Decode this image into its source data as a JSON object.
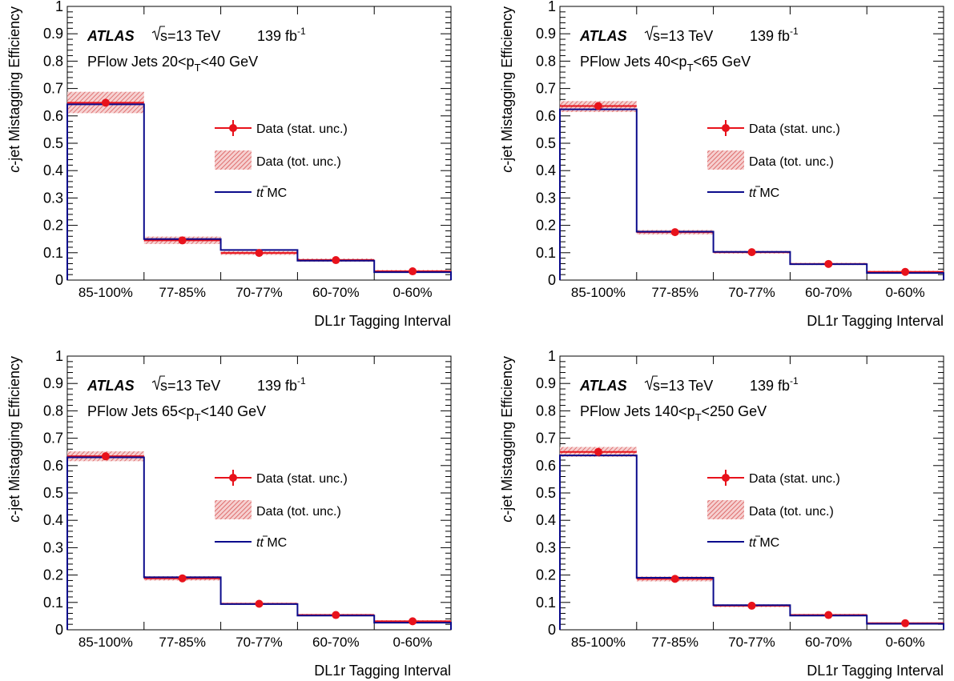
{
  "common": {
    "experiment": "ATLAS",
    "energy": "s=13 TeV",
    "luminosity": "139 fb",
    "lumi_exp": "-1",
    "ylabel_italic": "c",
    "ylabel_rest": "-jet Mistagging Efficiency",
    "xlabel": "DL1r Tagging Interval",
    "legend": {
      "stat": "Data (stat. unc.)",
      "tot": "Data  (tot. unc.)",
      "mc_italic": "tt",
      "mc_rest": " MC"
    },
    "colors": {
      "data": "#e8121b",
      "mc": "#0b0b8c",
      "band": "#e06a6a"
    }
  },
  "chart_data": [
    {
      "type": "bar",
      "title": "PFlow Jets 20<p_T<40 GeV",
      "title_prefix": "PFlow Jets 20<p",
      "title_sub": "T",
      "title_suffix": "<40 GeV",
      "categories": [
        "85-100%",
        "77-85%",
        "70-77%",
        "60-70%",
        "0-60%"
      ],
      "ylim": [
        0,
        1
      ],
      "yticks": [
        "0",
        "0.1",
        "0.2",
        "0.3",
        "0.4",
        "0.5",
        "0.6",
        "0.7",
        "0.8",
        "0.9",
        "1"
      ],
      "series": [
        {
          "name": "Data (stat. unc.)",
          "values": [
            0.648,
            0.145,
            0.099,
            0.073,
            0.032
          ]
        },
        {
          "name": "Data  (tot. unc.)",
          "low": [
            0.61,
            0.132,
            0.092,
            0.067,
            0.027
          ],
          "high": [
            0.688,
            0.159,
            0.106,
            0.079,
            0.037
          ]
        },
        {
          "name": "tt MC",
          "values": [
            0.642,
            0.15,
            0.11,
            0.071,
            0.029
          ]
        }
      ]
    },
    {
      "type": "bar",
      "title": "PFlow Jets 40<p_T<65 GeV",
      "title_prefix": "PFlow Jets 40<p",
      "title_sub": "T",
      "title_suffix": "<65 GeV",
      "categories": [
        "85-100%",
        "77-85%",
        "70-77%",
        "60-70%",
        "0-60%"
      ],
      "ylim": [
        0,
        1
      ],
      "yticks": [
        "0",
        "0.1",
        "0.2",
        "0.3",
        "0.4",
        "0.5",
        "0.6",
        "0.7",
        "0.8",
        "0.9",
        "1"
      ],
      "series": [
        {
          "name": "Data (stat. unc.)",
          "values": [
            0.636,
            0.175,
            0.102,
            0.059,
            0.03
          ]
        },
        {
          "name": "Data  (tot. unc.)",
          "low": [
            0.614,
            0.167,
            0.097,
            0.055,
            0.026
          ],
          "high": [
            0.654,
            0.183,
            0.107,
            0.063,
            0.034
          ]
        },
        {
          "name": "tt MC",
          "values": [
            0.624,
            0.177,
            0.103,
            0.058,
            0.026
          ]
        }
      ]
    },
    {
      "type": "bar",
      "title": "PFlow Jets 65<p_T<140 GeV",
      "title_prefix": "PFlow Jets 65<p",
      "title_sub": "T",
      "title_suffix": "<140 GeV",
      "categories": [
        "85-100%",
        "77-85%",
        "70-77%",
        "60-70%",
        "0-60%"
      ],
      "ylim": [
        0,
        1
      ],
      "yticks": [
        "0",
        "0.1",
        "0.2",
        "0.3",
        "0.4",
        "0.5",
        "0.6",
        "0.7",
        "0.8",
        "0.9",
        "1"
      ],
      "series": [
        {
          "name": "Data (stat. unc.)",
          "values": [
            0.634,
            0.188,
            0.095,
            0.054,
            0.031
          ]
        },
        {
          "name": "Data  (tot. unc.)",
          "low": [
            0.616,
            0.18,
            0.091,
            0.05,
            0.027
          ],
          "high": [
            0.652,
            0.196,
            0.099,
            0.058,
            0.035
          ]
        },
        {
          "name": "tt MC",
          "values": [
            0.63,
            0.192,
            0.094,
            0.052,
            0.026
          ]
        }
      ]
    },
    {
      "type": "bar",
      "title": "PFlow Jets 140<p_T<250 GeV",
      "title_prefix": "PFlow Jets 140<p",
      "title_sub": "T",
      "title_suffix": "<250 GeV",
      "categories": [
        "85-100%",
        "77-85%",
        "70-77%",
        "60-70%",
        "0-60%"
      ],
      "ylim": [
        0,
        1
      ],
      "yticks": [
        "0",
        "0.1",
        "0.2",
        "0.3",
        "0.4",
        "0.5",
        "0.6",
        "0.7",
        "0.8",
        "0.9",
        "1"
      ],
      "series": [
        {
          "name": "Data (stat. unc.)",
          "values": [
            0.65,
            0.186,
            0.088,
            0.054,
            0.024
          ]
        },
        {
          "name": "Data  (tot. unc.)",
          "low": [
            0.632,
            0.177,
            0.083,
            0.05,
            0.021
          ],
          "high": [
            0.668,
            0.195,
            0.093,
            0.058,
            0.027
          ]
        },
        {
          "name": "tt MC",
          "values": [
            0.637,
            0.19,
            0.09,
            0.052,
            0.022
          ]
        }
      ]
    }
  ]
}
